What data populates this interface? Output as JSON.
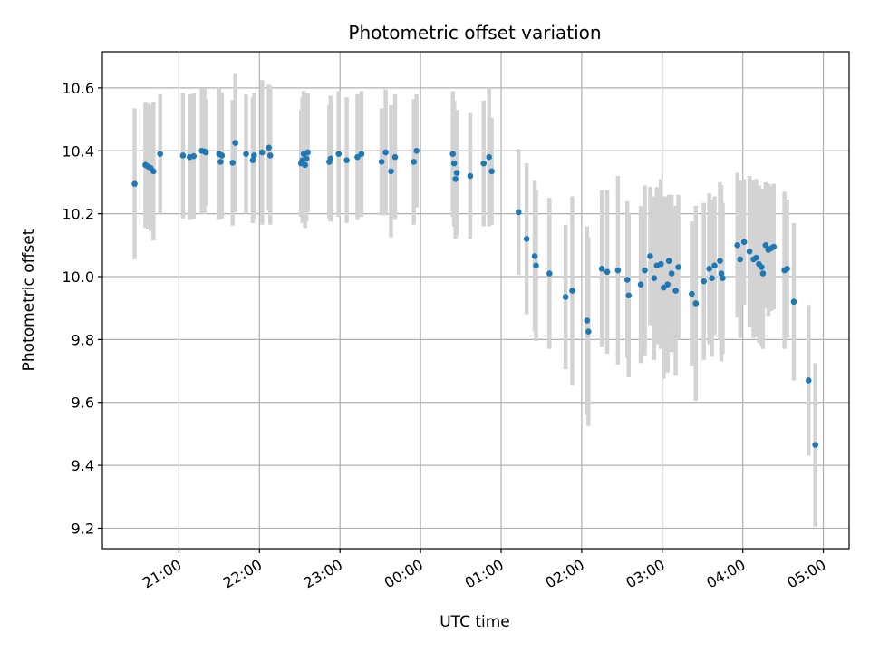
{
  "chart_data": {
    "type": "scatter",
    "title": "Photometric offset variation",
    "xlabel": "UTC time",
    "ylabel": "Photometric offset",
    "x_tick_labels": [
      "21:00",
      "22:00",
      "23:00",
      "00:00",
      "01:00",
      "02:00",
      "03:00",
      "04:00",
      "05:00"
    ],
    "x_tick_hours": [
      0,
      1,
      2,
      3,
      4,
      5,
      6,
      7,
      8
    ],
    "x_range_hours": [
      -0.95,
      8.32
    ],
    "y_ticks": [
      9.2,
      9.4,
      9.6,
      9.8,
      10.0,
      10.2,
      10.4,
      10.6
    ],
    "y_tick_labels": [
      "9.2",
      "9.4",
      "9.6",
      "9.8",
      "10.0",
      "10.2",
      "10.4",
      "10.6"
    ],
    "ylim": [
      9.135,
      10.715
    ],
    "grid": true,
    "colors": {
      "point": "#1f77b4",
      "errorbar": "#d3d3d3",
      "grid": "#b0b0b0"
    },
    "points": [
      {
        "x": "20:27",
        "y": 10.295,
        "err": 0.24
      },
      {
        "x": "20:35",
        "y": 10.355,
        "err": 0.2
      },
      {
        "x": "20:37",
        "y": 10.35,
        "err": 0.2
      },
      {
        "x": "20:39",
        "y": 10.345,
        "err": 0.2
      },
      {
        "x": "20:41",
        "y": 10.335,
        "err": 0.22
      },
      {
        "x": "20:46",
        "y": 10.39,
        "err": 0.19
      },
      {
        "x": "21:03",
        "y": 10.385,
        "err": 0.2
      },
      {
        "x": "21:08",
        "y": 10.38,
        "err": 0.2
      },
      {
        "x": "21:11",
        "y": 10.383,
        "err": 0.2
      },
      {
        "x": "21:17",
        "y": 10.4,
        "err": 0.2
      },
      {
        "x": "21:19",
        "y": 10.398,
        "err": 0.2
      },
      {
        "x": "21:20",
        "y": 10.395,
        "err": 0.17
      },
      {
        "x": "21:30",
        "y": 10.39,
        "err": 0.21
      },
      {
        "x": "21:31",
        "y": 10.365,
        "err": 0.18
      },
      {
        "x": "21:32",
        "y": 10.385,
        "err": 0.2
      },
      {
        "x": "21:40",
        "y": 10.362,
        "err": 0.2
      },
      {
        "x": "21:42",
        "y": 10.425,
        "err": 0.22
      },
      {
        "x": "21:50",
        "y": 10.39,
        "err": 0.19
      },
      {
        "x": "21:55",
        "y": 10.37,
        "err": 0.2
      },
      {
        "x": "21:56",
        "y": 10.385,
        "err": 0.2
      },
      {
        "x": "22:02",
        "y": 10.395,
        "err": 0.23
      },
      {
        "x": "22:07",
        "y": 10.41,
        "err": 0.2
      },
      {
        "x": "22:08",
        "y": 10.385,
        "err": 0.22
      },
      {
        "x": "22:31",
        "y": 10.36,
        "err": 0.17
      },
      {
        "x": "22:32",
        "y": 10.37,
        "err": 0.2
      },
      {
        "x": "22:33",
        "y": 10.39,
        "err": 0.2
      },
      {
        "x": "22:34",
        "y": 10.355,
        "err": 0.2
      },
      {
        "x": "22:35",
        "y": 10.375,
        "err": 0.2
      },
      {
        "x": "22:36",
        "y": 10.395,
        "err": 0.19
      },
      {
        "x": "22:52",
        "y": 10.365,
        "err": 0.18
      },
      {
        "x": "22:53",
        "y": 10.375,
        "err": 0.2
      },
      {
        "x": "22:59",
        "y": 10.39,
        "err": 0.2
      },
      {
        "x": "23:05",
        "y": 10.37,
        "err": 0.2
      },
      {
        "x": "23:13",
        "y": 10.38,
        "err": 0.2
      },
      {
        "x": "23:16",
        "y": 10.39,
        "err": 0.2
      },
      {
        "x": "23:31",
        "y": 10.365,
        "err": 0.17
      },
      {
        "x": "23:34",
        "y": 10.395,
        "err": 0.2
      },
      {
        "x": "23:38",
        "y": 10.335,
        "err": 0.21
      },
      {
        "x": "23:41",
        "y": 10.38,
        "err": 0.2
      },
      {
        "x": "23:55",
        "y": 10.365,
        "err": 0.2
      },
      {
        "x": "23:57",
        "y": 10.4,
        "err": 0.18
      },
      {
        "x": "00:24",
        "y": 10.39,
        "err": 0.2
      },
      {
        "x": "00:25",
        "y": 10.36,
        "err": 0.2
      },
      {
        "x": "00:26",
        "y": 10.31,
        "err": 0.19
      },
      {
        "x": "00:27",
        "y": 10.33,
        "err": 0.2
      },
      {
        "x": "00:37",
        "y": 10.32,
        "err": 0.2
      },
      {
        "x": "00:47",
        "y": 10.36,
        "err": 0.2
      },
      {
        "x": "00:51",
        "y": 10.38,
        "err": 0.22
      },
      {
        "x": "00:53",
        "y": 10.335,
        "err": 0.17
      },
      {
        "x": "01:13",
        "y": 10.205,
        "err": 0.2
      },
      {
        "x": "01:19",
        "y": 10.12,
        "err": 0.24
      },
      {
        "x": "01:25",
        "y": 10.065,
        "err": 0.24
      },
      {
        "x": "01:26",
        "y": 10.035,
        "err": 0.24
      },
      {
        "x": "01:36",
        "y": 10.01,
        "err": 0.24
      },
      {
        "x": "01:48",
        "y": 9.935,
        "err": 0.23
      },
      {
        "x": "01:53",
        "y": 9.955,
        "err": 0.3
      },
      {
        "x": "02:04",
        "y": 9.86,
        "err": 0.3
      },
      {
        "x": "02:05",
        "y": 9.825,
        "err": 0.3
      },
      {
        "x": "02:15",
        "y": 10.025,
        "err": 0.25
      },
      {
        "x": "02:19",
        "y": 10.015,
        "err": 0.26
      },
      {
        "x": "02:27",
        "y": 10.02,
        "err": 0.3
      },
      {
        "x": "02:34",
        "y": 9.99,
        "err": 0.25
      },
      {
        "x": "02:35",
        "y": 9.94,
        "err": 0.26
      },
      {
        "x": "02:44",
        "y": 9.975,
        "err": 0.25
      },
      {
        "x": "02:47",
        "y": 10.02,
        "err": 0.27
      },
      {
        "x": "02:51",
        "y": 10.065,
        "err": 0.22
      },
      {
        "x": "02:54",
        "y": 9.995,
        "err": 0.26
      },
      {
        "x": "02:56",
        "y": 10.035,
        "err": 0.25
      },
      {
        "x": "02:59",
        "y": 10.04,
        "err": 0.27
      },
      {
        "x": "03:01",
        "y": 9.965,
        "err": 0.29
      },
      {
        "x": "03:04",
        "y": 9.975,
        "err": 0.28
      },
      {
        "x": "03:05",
        "y": 10.05,
        "err": 0.21
      },
      {
        "x": "03:07",
        "y": 10.01,
        "err": 0.25
      },
      {
        "x": "03:10",
        "y": 9.955,
        "err": 0.27
      },
      {
        "x": "03:12",
        "y": 10.03,
        "err": 0.23
      },
      {
        "x": "03:22",
        "y": 9.945,
        "err": 0.23
      },
      {
        "x": "03:25",
        "y": 9.915,
        "err": 0.31
      },
      {
        "x": "03:31",
        "y": 9.985,
        "err": 0.25
      },
      {
        "x": "03:35",
        "y": 10.025,
        "err": 0.24
      },
      {
        "x": "03:37",
        "y": 9.995,
        "err": 0.25
      },
      {
        "x": "03:39",
        "y": 10.035,
        "err": 0.22
      },
      {
        "x": "03:43",
        "y": 10.05,
        "err": 0.25
      },
      {
        "x": "03:44",
        "y": 10.01,
        "err": 0.28
      },
      {
        "x": "03:45",
        "y": 9.995,
        "err": 0.24
      },
      {
        "x": "03:56",
        "y": 10.1,
        "err": 0.23
      },
      {
        "x": "03:58",
        "y": 10.055,
        "err": 0.25
      },
      {
        "x": "04:01",
        "y": 10.11,
        "err": 0.2
      },
      {
        "x": "04:05",
        "y": 10.08,
        "err": 0.24
      },
      {
        "x": "04:08",
        "y": 10.055,
        "err": 0.25
      },
      {
        "x": "04:10",
        "y": 10.06,
        "err": 0.25
      },
      {
        "x": "04:12",
        "y": 10.04,
        "err": 0.25
      },
      {
        "x": "04:14",
        "y": 10.03,
        "err": 0.25
      },
      {
        "x": "04:15",
        "y": 10.01,
        "err": 0.24
      },
      {
        "x": "04:17",
        "y": 10.1,
        "err": 0.2
      },
      {
        "x": "04:19",
        "y": 10.085,
        "err": 0.21
      },
      {
        "x": "04:21",
        "y": 10.09,
        "err": 0.2
      },
      {
        "x": "04:23",
        "y": 10.095,
        "err": 0.2
      },
      {
        "x": "04:31",
        "y": 10.02,
        "err": 0.25
      },
      {
        "x": "04:33",
        "y": 10.025,
        "err": 0.22
      },
      {
        "x": "04:38",
        "y": 9.92,
        "err": 0.25
      },
      {
        "x": "04:49",
        "y": 9.67,
        "err": 0.24
      },
      {
        "x": "04:54",
        "y": 9.465,
        "err": 0.26
      }
    ]
  }
}
